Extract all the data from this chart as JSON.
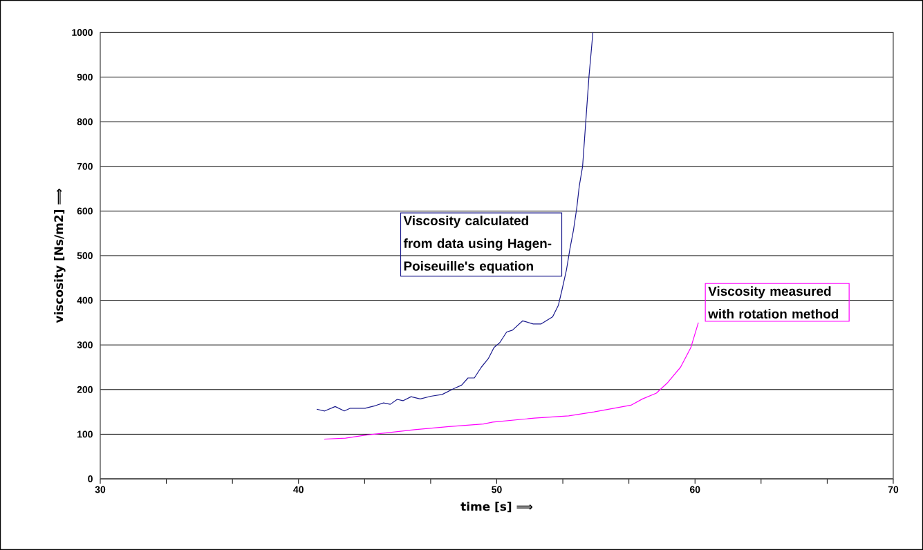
{
  "chart_data": {
    "type": "line",
    "xlabel": "time [s] ⟹",
    "ylabel": "viscosity [Ns/m2] ⟹",
    "series": [
      {
        "name": "Viscosity calculated from data using Hagen-Poiseuille's equation",
        "color": "#1a1a8c",
        "x": [
          40.92,
          41.32,
          41.85,
          42.31,
          42.6,
          43.36,
          43.88,
          44.29,
          44.63,
          44.98,
          45.27,
          45.68,
          46.14,
          46.67,
          47.25,
          47.83,
          48.23,
          48.55,
          48.87,
          49.22,
          49.57,
          49.86,
          50.15,
          50.5,
          50.79,
          51.31,
          51.84,
          52.24,
          52.82,
          53.11,
          53.29,
          53.52,
          53.69,
          53.87,
          54.04,
          54.16,
          54.33,
          54.49,
          54.65,
          54.85
        ],
        "values": [
          156,
          152,
          162,
          152,
          158,
          158,
          164,
          170,
          167,
          178,
          175,
          184,
          179,
          185,
          189,
          202,
          210,
          226,
          226,
          250,
          269,
          294,
          305,
          329,
          333,
          354,
          347,
          347,
          363,
          389,
          423,
          469,
          515,
          557,
          608,
          655,
          700,
          800,
          900,
          1000
        ]
      },
      {
        "name": "Viscosity measured with rotation method",
        "color": "#ff00ff",
        "x": [
          41.3,
          42.37,
          43.41,
          44.46,
          45.85,
          47.59,
          49.33,
          49.8,
          51.89,
          53.63,
          54.91,
          56.77,
          57.35,
          58.05,
          58.63,
          59.27,
          59.79,
          60.17
        ],
        "values": [
          89,
          91,
          98,
          103,
          110,
          117,
          123,
          127,
          136,
          141,
          150,
          165,
          179,
          192,
          216,
          250,
          294,
          350
        ]
      }
    ],
    "xlim": [
      30,
      70
    ],
    "ylim": [
      0,
      1000
    ],
    "xticks": [
      30,
      {
        "value": 33.333,
        "label": null
      },
      {
        "value": 36.667,
        "label": null
      },
      40,
      {
        "value": 43.333,
        "label": null
      },
      {
        "value": 46.667,
        "label": null
      },
      50,
      {
        "value": 53.333,
        "label": null
      },
      {
        "value": 56.667,
        "label": null
      },
      60,
      {
        "value": 63.333,
        "label": null
      },
      {
        "value": 66.667,
        "label": null
      },
      70
    ],
    "yticks": [
      0,
      100,
      200,
      300,
      400,
      500,
      600,
      700,
      800,
      900,
      1000
    ],
    "grid": "y",
    "marker": "none",
    "line_style": "solid"
  }
}
